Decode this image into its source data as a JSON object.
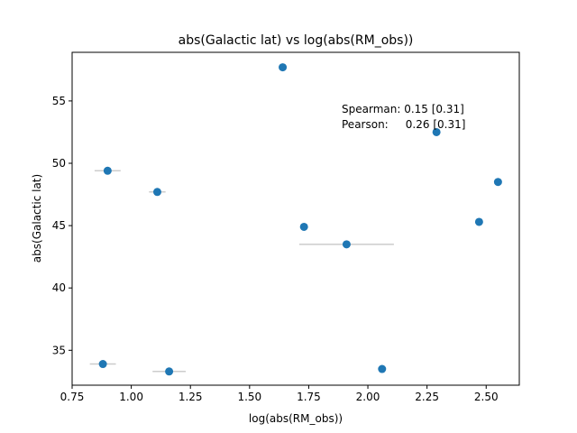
{
  "chart_data": {
    "type": "scatter",
    "title": "abs(Galactic lat) vs log(abs(RM_obs))",
    "xlabel": "log(abs(RM_obs))",
    "ylabel": "abs(Galactic lat)",
    "xlim": [
      0.75,
      2.64
    ],
    "ylim": [
      32.2,
      58.9
    ],
    "grid": false,
    "xticks": [
      0.75,
      1.0,
      1.25,
      1.5,
      1.75,
      2.0,
      2.25,
      2.5
    ],
    "xtick_labels": [
      "0.75",
      "1.00",
      "1.25",
      "1.50",
      "1.75",
      "2.00",
      "2.25",
      "2.50"
    ],
    "yticks": [
      35,
      40,
      45,
      50,
      55
    ],
    "ytick_labels": [
      "35",
      "40",
      "45",
      "50",
      "55"
    ],
    "marker_color": "#1f77b4",
    "errorbar_color": "#cccccc",
    "points": [
      {
        "x": 1.64,
        "y": 57.7
      },
      {
        "x": 2.29,
        "y": 52.5
      },
      {
        "x": 0.9,
        "y": 49.4,
        "xerr": 0.055
      },
      {
        "x": 2.55,
        "y": 48.5
      },
      {
        "x": 1.11,
        "y": 47.7,
        "xerr": 0.035
      },
      {
        "x": 2.47,
        "y": 45.3
      },
      {
        "x": 1.73,
        "y": 44.9
      },
      {
        "x": 1.91,
        "y": 43.5,
        "xerr": 0.2
      },
      {
        "x": 0.88,
        "y": 33.9,
        "xerr": 0.055
      },
      {
        "x": 1.16,
        "y": 33.3,
        "xerr": 0.07
      },
      {
        "x": 2.06,
        "y": 33.5
      }
    ],
    "annotations": [
      "Spearman: 0.15 [0.31]",
      "Pearson:     0.26 [0.31]"
    ]
  }
}
